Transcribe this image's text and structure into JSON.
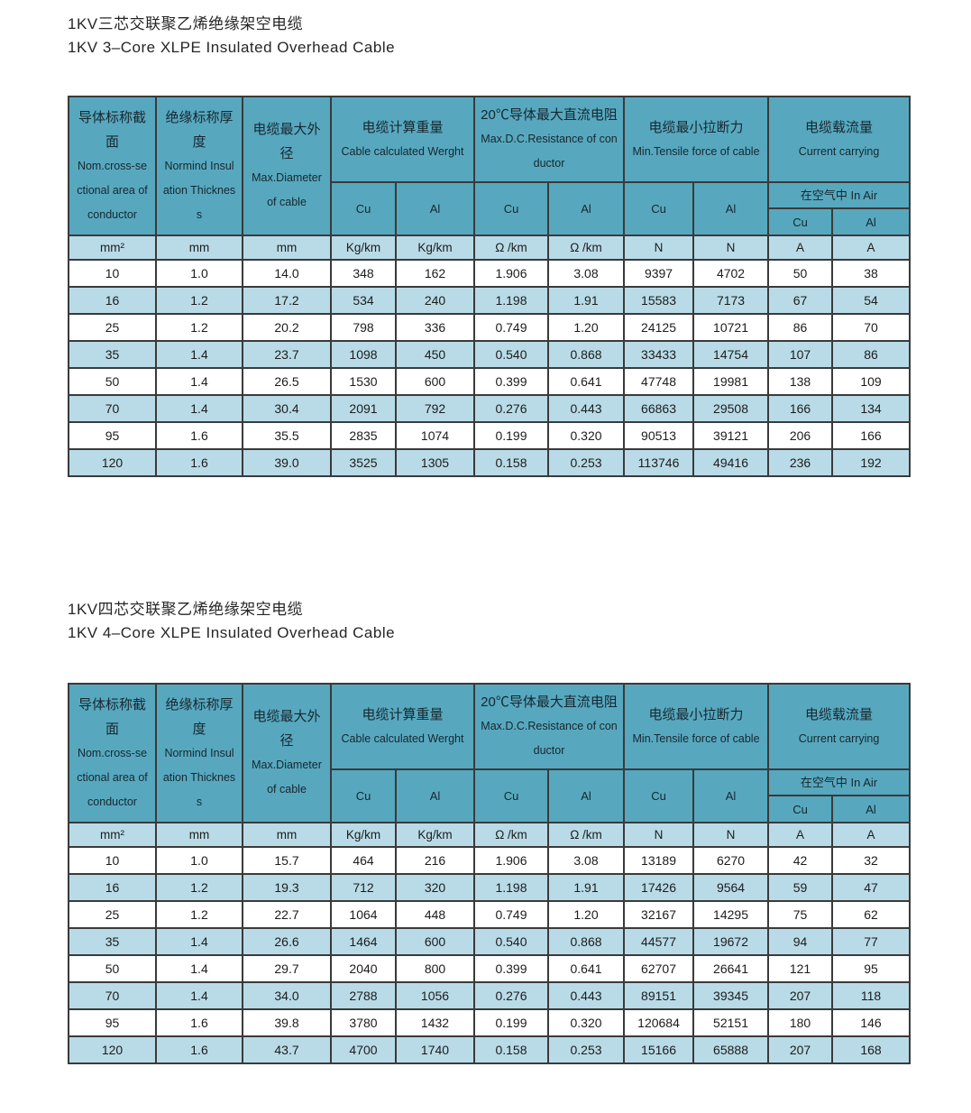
{
  "colors": {
    "header_bg": "#57a8bf",
    "row_alt_bg": "#b9dbe7",
    "row_bg": "#ffffff",
    "border": "#3a3a3a",
    "text": "#1c1c1c"
  },
  "labels": {
    "cu": "Cu",
    "al": "Al",
    "in_air": "在空气中  In Air"
  },
  "header": {
    "cross_cn": "导体标称截面",
    "cross_en": "Nom.cross-sectional area of conductor",
    "insulation_cn": "绝缘标称厚度",
    "insulation_en": "Normind Insulation Thickness",
    "diameter_cn": "电缆最大外径",
    "diameter_en": "Max.Diameter of cable",
    "weight_cn": "电缆计算重量",
    "weight_en": "Cable calculated Werght",
    "resistance_cn": "20℃导体最大直流电阻",
    "resistance_en": "Max.D.C.Resistance of conductor",
    "tensile_cn": "电缆最小拉断力",
    "tensile_en": "Min.Tensile force of cable",
    "current_cn": "电缆载流量",
    "current_en": "Current carrying"
  },
  "units": [
    "mm²",
    "mm",
    "mm",
    "Kg/km",
    "Kg/km",
    "Ω /km",
    "Ω /km",
    "N",
    "N",
    "A",
    "A"
  ],
  "tables": [
    {
      "title_cn": "1KV三芯交联聚乙烯绝缘架空电缆",
      "title_en": "1KV 3–Core XLPE Insulated Overhead Cable",
      "rows": [
        [
          "10",
          "1.0",
          "14.0",
          "348",
          "162",
          "1.906",
          "3.08",
          "9397",
          "4702",
          "50",
          "38"
        ],
        [
          "16",
          "1.2",
          "17.2",
          "534",
          "240",
          "1.198",
          "1.91",
          "15583",
          "7173",
          "67",
          "54"
        ],
        [
          "25",
          "1.2",
          "20.2",
          "798",
          "336",
          "0.749",
          "1.20",
          "24125",
          "10721",
          "86",
          "70"
        ],
        [
          "35",
          "1.4",
          "23.7",
          "1098",
          "450",
          "0.540",
          "0.868",
          "33433",
          "14754",
          "107",
          "86"
        ],
        [
          "50",
          "1.4",
          "26.5",
          "1530",
          "600",
          "0.399",
          "0.641",
          "47748",
          "19981",
          "138",
          "109"
        ],
        [
          "70",
          "1.4",
          "30.4",
          "2091",
          "792",
          "0.276",
          "0.443",
          "66863",
          "29508",
          "166",
          "134"
        ],
        [
          "95",
          "1.6",
          "35.5",
          "2835",
          "1074",
          "0.199",
          "0.320",
          "90513",
          "39121",
          "206",
          "166"
        ],
        [
          "120",
          "1.6",
          "39.0",
          "3525",
          "1305",
          "0.158",
          "0.253",
          "113746",
          "49416",
          "236",
          "192"
        ]
      ]
    },
    {
      "title_cn": "1KV四芯交联聚乙烯绝缘架空电缆",
      "title_en": "1KV 4–Core XLPE Insulated Overhead Cable",
      "rows": [
        [
          "10",
          "1.0",
          "15.7",
          "464",
          "216",
          "1.906",
          "3.08",
          "13189",
          "6270",
          "42",
          "32"
        ],
        [
          "16",
          "1.2",
          "19.3",
          "712",
          "320",
          "1.198",
          "1.91",
          "17426",
          "9564",
          "59",
          "47"
        ],
        [
          "25",
          "1.2",
          "22.7",
          "1064",
          "448",
          "0.749",
          "1.20",
          "32167",
          "14295",
          "75",
          "62"
        ],
        [
          "35",
          "1.4",
          "26.6",
          "1464",
          "600",
          "0.540",
          "0.868",
          "44577",
          "19672",
          "94",
          "77"
        ],
        [
          "50",
          "1.4",
          "29.7",
          "2040",
          "800",
          "0.399",
          "0.641",
          "62707",
          "26641",
          "121",
          "95"
        ],
        [
          "70",
          "1.4",
          "34.0",
          "2788",
          "1056",
          "0.276",
          "0.443",
          "89151",
          "39345",
          "207",
          "118"
        ],
        [
          "95",
          "1.6",
          "39.8",
          "3780",
          "1432",
          "0.199",
          "0.320",
          "120684",
          "52151",
          "180",
          "146"
        ],
        [
          "120",
          "1.6",
          "43.7",
          "4700",
          "1740",
          "0.158",
          "0.253",
          "15166",
          "65888",
          "207",
          "168"
        ]
      ]
    }
  ]
}
